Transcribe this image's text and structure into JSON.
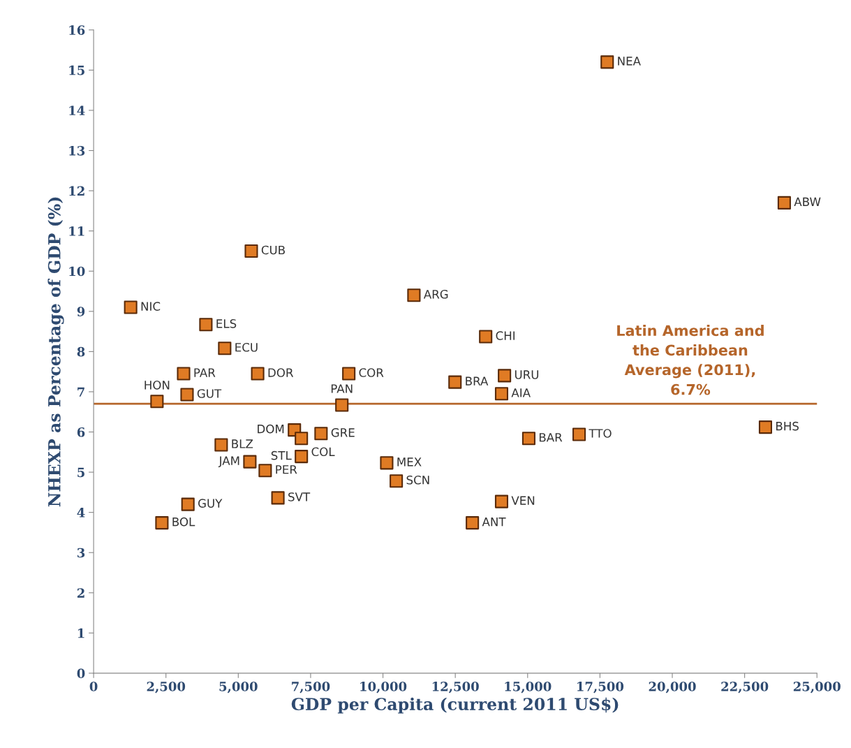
{
  "chart_data": {
    "type": "scatter",
    "xlabel": "GDP per Capita (current 2011 US$)",
    "ylabel": "NHEXP as Percentage of GDP (%)",
    "x": [
      17750,
      23870,
      5450,
      1280,
      11070,
      3880,
      4530,
      13550,
      3110,
      5670,
      8820,
      14200,
      12490,
      14100,
      3230,
      2190,
      8580,
      23220,
      6940,
      16780,
      7860,
      7180,
      15040,
      4410,
      7180,
      5400,
      10130,
      5930,
      10460,
      6370,
      14100,
      3260,
      2360,
      13090
    ],
    "series": [
      {
        "color": "#e07b24",
        "values": [
          15.2,
          11.7,
          10.5,
          9.1,
          9.4,
          8.67,
          8.08,
          8.37,
          7.45,
          7.45,
          7.45,
          7.4,
          7.24,
          6.95,
          6.93,
          6.76,
          6.67,
          6.12,
          6.05,
          5.94,
          5.96,
          5.84,
          5.84,
          5.68,
          5.39,
          5.26,
          5.23,
          5.04,
          4.78,
          4.36,
          4.27,
          4.2,
          3.74,
          3.74
        ]
      }
    ],
    "annotations": [
      {
        "text": "NEA",
        "x": 17750,
        "y": 15.2
      },
      {
        "text": "ABW",
        "x": 23870,
        "y": 11.7
      },
      {
        "text": "CUB",
        "x": 5450,
        "y": 10.5
      },
      {
        "text": "NIC",
        "x": 1280,
        "y": 9.1
      },
      {
        "text": "ARG",
        "x": 11070,
        "y": 9.4
      },
      {
        "text": "ELS",
        "x": 3880,
        "y": 8.67
      },
      {
        "text": "ECU",
        "x": 4530,
        "y": 8.08
      },
      {
        "text": "CHI",
        "x": 13550,
        "y": 8.37
      },
      {
        "text": "PAR",
        "x": 3110,
        "y": 7.45
      },
      {
        "text": "DOR",
        "x": 5670,
        "y": 7.45
      },
      {
        "text": "COR",
        "x": 8820,
        "y": 7.45
      },
      {
        "text": "URU",
        "x": 14200,
        "y": 7.4
      },
      {
        "text": "BRA",
        "x": 12490,
        "y": 7.24
      },
      {
        "text": "AIA",
        "x": 14100,
        "y": 6.95
      },
      {
        "text": "GUT",
        "x": 3230,
        "y": 6.93
      },
      {
        "text": "HON",
        "x": 2190,
        "y": 6.76
      },
      {
        "text": "PAN",
        "x": 8580,
        "y": 6.67
      },
      {
        "text": "BHS",
        "x": 23220,
        "y": 6.12
      },
      {
        "text": "DOM",
        "x": 6940,
        "y": 6.05
      },
      {
        "text": "TTO",
        "x": 16780,
        "y": 5.94
      },
      {
        "text": "GRE",
        "x": 7860,
        "y": 5.96
      },
      {
        "text": "COL",
        "x": 7180,
        "y": 5.84
      },
      {
        "text": "BAR",
        "x": 15040,
        "y": 5.84
      },
      {
        "text": "BLZ",
        "x": 4410,
        "y": 5.68
      },
      {
        "text": "STL",
        "x": 7180,
        "y": 5.39
      },
      {
        "text": "JAM",
        "x": 5400,
        "y": 5.26
      },
      {
        "text": "MEX",
        "x": 10130,
        "y": 5.23
      },
      {
        "text": "PER",
        "x": 5930,
        "y": 5.04
      },
      {
        "text": "SCN",
        "x": 10460,
        "y": 4.78
      },
      {
        "text": "SVT",
        "x": 6370,
        "y": 4.36
      },
      {
        "text": "VEN",
        "x": 14100,
        "y": 4.27
      },
      {
        "text": "GUY",
        "x": 3260,
        "y": 4.2
      },
      {
        "text": "BOL",
        "x": 2360,
        "y": 3.74
      },
      {
        "text": "ANT",
        "x": 13090,
        "y": 3.74
      }
    ],
    "ref_lines": [
      {
        "axis": "y",
        "value": 6.7,
        "label": "Latin America and\nthe Caribbean\nAverage (2011),\n6.7%",
        "color": "#b5652a"
      }
    ],
    "xlim": [
      0,
      25000
    ],
    "ylim": [
      0,
      16
    ],
    "xticks": [
      0,
      {
        "value": 2500,
        "label": "2,500"
      },
      {
        "value": 5000,
        "label": "5,000"
      },
      {
        "value": 7500,
        "label": "7,500"
      },
      {
        "value": 10000,
        "label": "10,000"
      },
      {
        "value": 12500,
        "label": "12,500"
      },
      {
        "value": 15000,
        "label": "15,000"
      },
      {
        "value": 17500,
        "label": "17,500"
      },
      {
        "value": 20000,
        "label": "20,000"
      },
      {
        "value": 22500,
        "label": "22,500"
      },
      {
        "value": 25000,
        "label": "25,000"
      }
    ],
    "yticks": [
      0,
      1,
      2,
      3,
      4,
      5,
      6,
      7,
      8,
      9,
      10,
      11,
      12,
      13,
      14,
      15,
      16
    ],
    "grid": false,
    "legend": false,
    "marker": "square"
  }
}
